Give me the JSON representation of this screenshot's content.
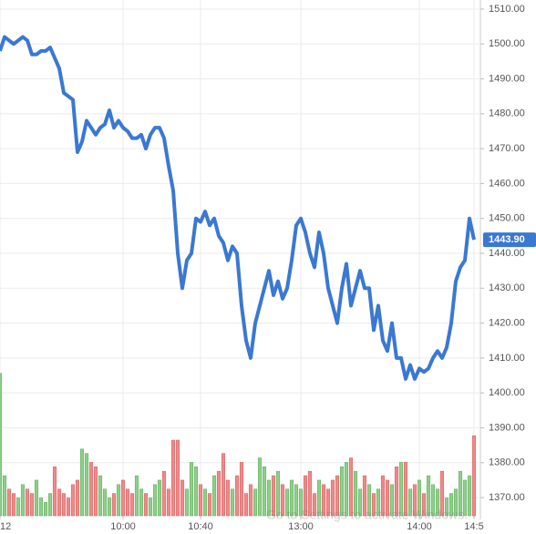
{
  "chart_data": {
    "type": "line",
    "values": [
      1498,
      1502,
      1501,
      1500,
      1501,
      1502,
      1501,
      1497,
      1497,
      1498,
      1498,
      1499,
      1496,
      1493,
      1486,
      1485,
      1484,
      1469,
      1472,
      1478,
      1476,
      1474,
      1476,
      1477,
      1481,
      1476,
      1478,
      1476,
      1475,
      1473,
      1473,
      1474,
      1470,
      1474,
      1476,
      1476,
      1473,
      1465,
      1458,
      1440,
      1430,
      1438,
      1440,
      1450,
      1449,
      1452,
      1448,
      1450,
      1445,
      1443,
      1438,
      1442,
      1440,
      1425,
      1415,
      1410,
      1420,
      1425,
      1430,
      1435,
      1428,
      1432,
      1427,
      1430,
      1438,
      1448,
      1450,
      1446,
      1440,
      1436,
      1446,
      1440,
      1430,
      1425,
      1420,
      1430,
      1437,
      1425,
      1430,
      1435,
      1430,
      1430,
      1418,
      1425,
      1415,
      1412,
      1420,
      1410,
      1410,
      1404,
      1408,
      1404,
      1407,
      1406,
      1407,
      1410,
      1412,
      1410,
      1413,
      1420,
      1432,
      1436,
      1438,
      1450,
      1443.9
    ],
    "volume": [
      160,
      45,
      30,
      25,
      20,
      35,
      30,
      25,
      40,
      20,
      15,
      25,
      55,
      30,
      25,
      20,
      35,
      40,
      75,
      70,
      60,
      55,
      45,
      30,
      20,
      25,
      35,
      40,
      30,
      25,
      45,
      30,
      25,
      20,
      35,
      40,
      50,
      30,
      85,
      85,
      40,
      30,
      60,
      55,
      35,
      30,
      25,
      45,
      50,
      70,
      40,
      30,
      45,
      60,
      25,
      35,
      30,
      65,
      55,
      40,
      45,
      50,
      35,
      30,
      40,
      35,
      30,
      45,
      50,
      25,
      40,
      35,
      30,
      40,
      45,
      55,
      60,
      65,
      50,
      30,
      45,
      35,
      25,
      30,
      45,
      40,
      35,
      55,
      60,
      60,
      30,
      35,
      40,
      25,
      45,
      35,
      30,
      50,
      20,
      25,
      30,
      50,
      40,
      45,
      90
    ],
    "vlim": [
      0,
      170
    ],
    "color": "#3a78d2",
    "up_color": "#8fcf8a",
    "down_color": "#f08a8a",
    "ylim": [
      1367.4,
      1512.6
    ],
    "yticks": [
      {
        "value": 1370,
        "label": "1370.00"
      },
      {
        "value": 1380,
        "label": "1380.00"
      },
      {
        "value": 1390,
        "label": "1390.00"
      },
      {
        "value": 1400,
        "label": "1400.00"
      },
      {
        "value": 1410,
        "label": "1410.00"
      },
      {
        "value": 1420,
        "label": "1420.00"
      },
      {
        "value": 1430,
        "label": "1430.00"
      },
      {
        "value": 1440,
        "label": "1440.00"
      },
      {
        "value": 1450,
        "label": "1450.00"
      },
      {
        "value": 1460,
        "label": "1460.00"
      },
      {
        "value": 1470,
        "label": "1470.00"
      },
      {
        "value": 1480,
        "label": "1480.00"
      },
      {
        "value": 1490,
        "label": "1490.00"
      },
      {
        "value": 1500,
        "label": "1500.00"
      },
      {
        "value": 1510,
        "label": "1510.00"
      }
    ],
    "xticks": [
      {
        "value": 0,
        "label": "12"
      },
      {
        "value": 27,
        "label": "10:00"
      },
      {
        "value": 44,
        "label": "10:40"
      },
      {
        "value": 66,
        "label": "13:00"
      },
      {
        "value": 92,
        "label": "14:00"
      },
      {
        "value": 104,
        "label": "14:5"
      }
    ],
    "last_price": {
      "value": 1443.9,
      "label": "1443.90"
    },
    "watermark": "Go to Settings to activate Windows.",
    "grid": true
  }
}
